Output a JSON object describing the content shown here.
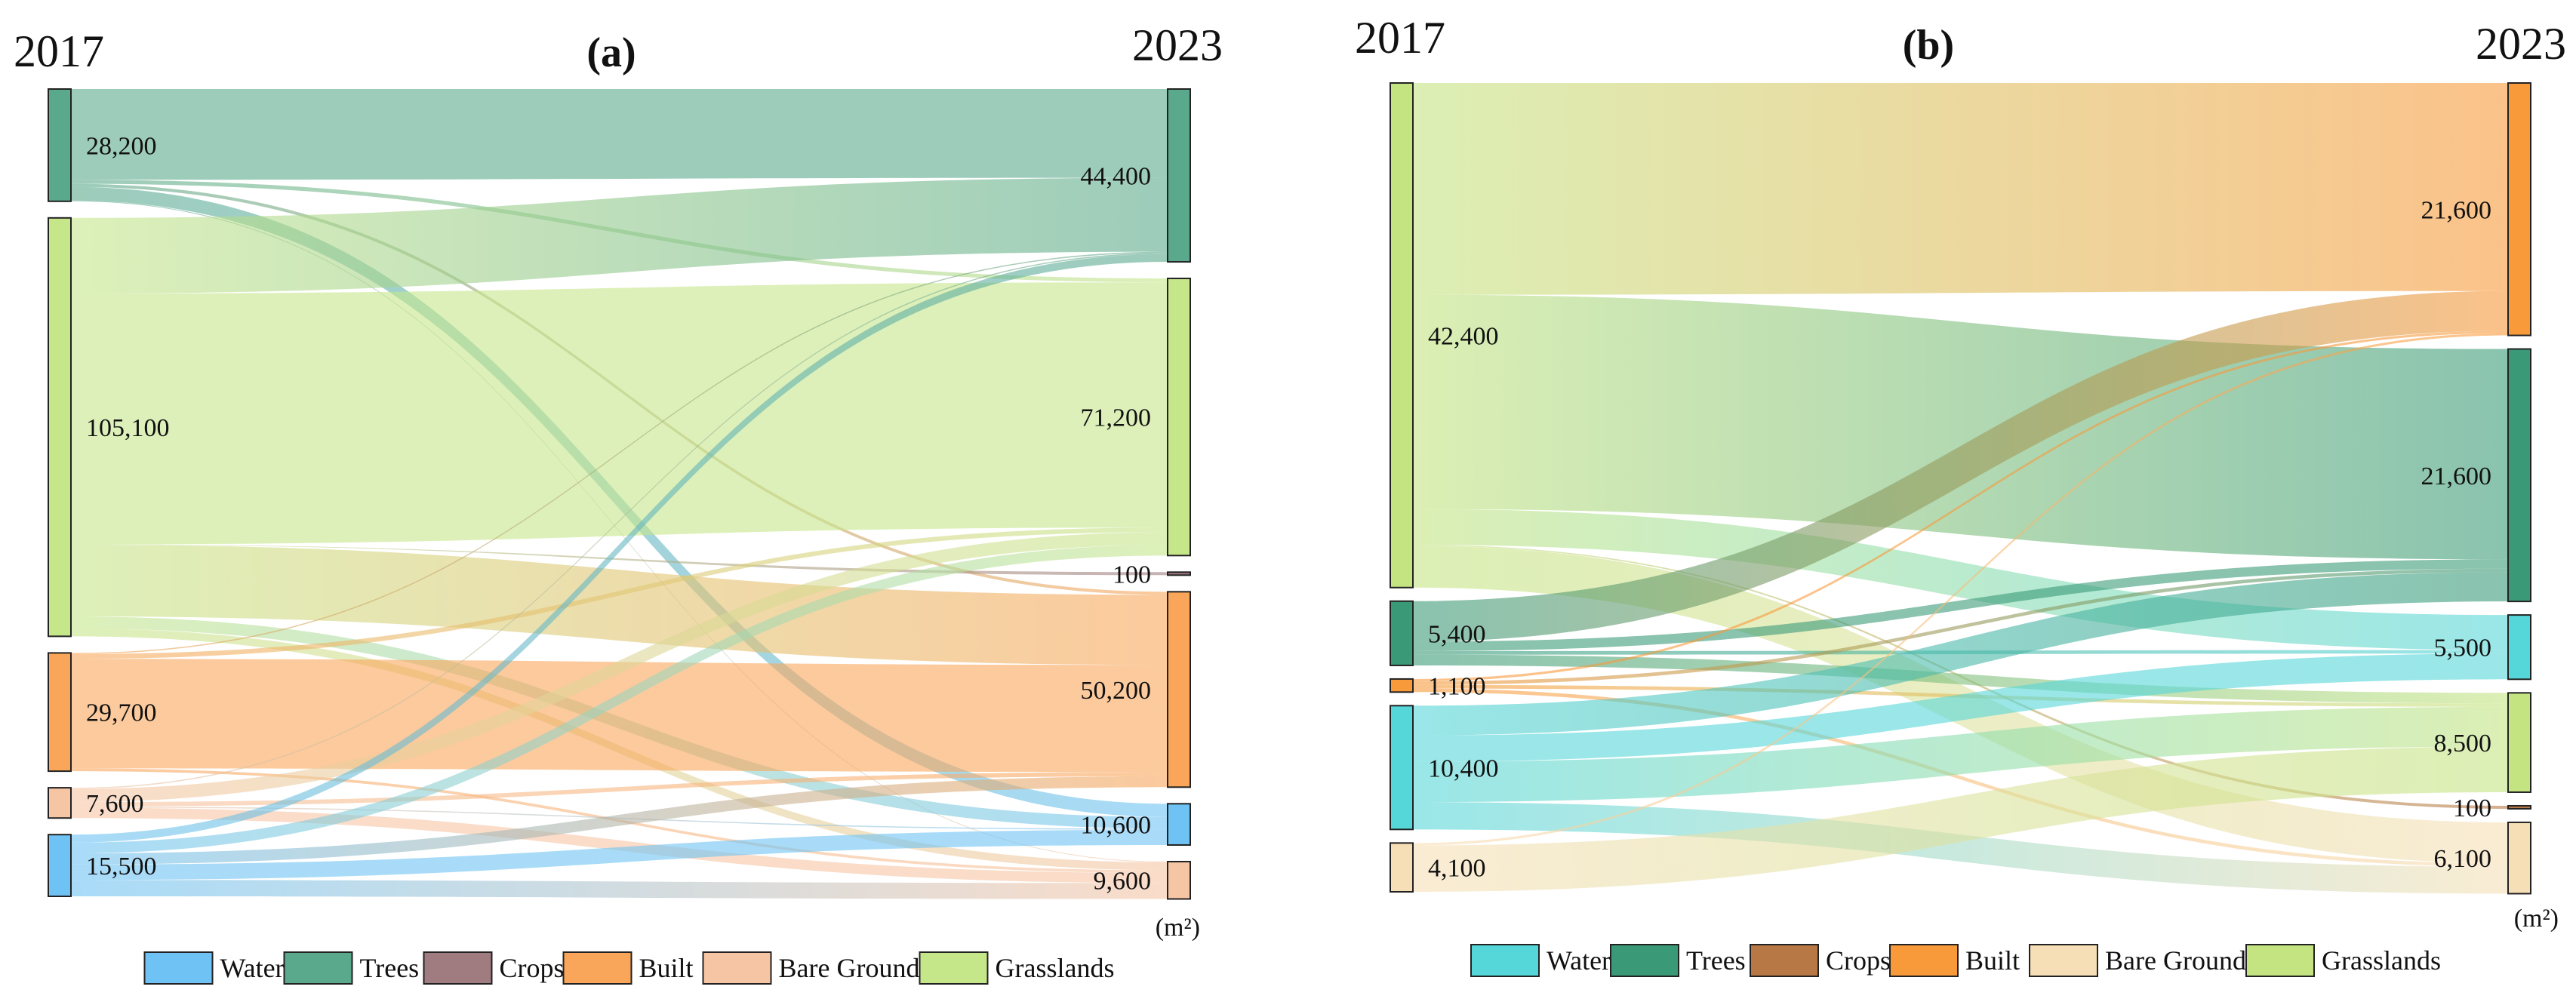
{
  "colors": {
    "a": {
      "Water": "#6ec3f4",
      "Trees": "#5aa98c",
      "Crops": "#a07c80",
      "Built": "#f9a65a",
      "Bare Ground": "#f6c5a4",
      "Grasslands": "#c6e68a"
    },
    "b": {
      "Water": "#55d6d9",
      "Trees": "#3a9a78",
      "Crops": "#b87845",
      "Built": "#f8993a",
      "Bare Ground": "#f6dfb6",
      "Grasslands": "#c4e482"
    }
  },
  "chart_data": [
    {
      "type": "sankey",
      "panel": "(a)",
      "title": "(a)",
      "left_year": "2017",
      "right_year": "2023",
      "unit": "(m²)",
      "left_nodes": [
        {
          "name": "Trees",
          "value": 28200,
          "label": "28,200"
        },
        {
          "name": "Grasslands",
          "value": 105100,
          "label": "105,100"
        },
        {
          "name": "Built",
          "value": 29700,
          "label": "29,700"
        },
        {
          "name": "Bare Ground",
          "value": 7600,
          "label": "7,600"
        },
        {
          "name": "Water",
          "value": 15500,
          "label": "15,500"
        }
      ],
      "right_nodes": [
        {
          "name": "Trees",
          "value": 44400,
          "label": "44,400"
        },
        {
          "name": "Grasslands",
          "value": 71200,
          "label": "71,200"
        },
        {
          "name": "Crops",
          "value": 100,
          "label": "100"
        },
        {
          "name": "Built",
          "value": 50200,
          "label": "50,200"
        },
        {
          "name": "Water",
          "value": 10600,
          "label": "10,600"
        },
        {
          "name": "Bare Ground",
          "value": 9600,
          "label": "9,600"
        }
      ],
      "flows": [
        {
          "from": "Trees",
          "to": "Trees",
          "value": 22800
        },
        {
          "from": "Trees",
          "to": "Grasslands",
          "value": 1000
        },
        {
          "from": "Trees",
          "to": "Built",
          "value": 800
        },
        {
          "from": "Trees",
          "to": "Water",
          "value": 3400
        },
        {
          "from": "Trees",
          "to": "Bare Ground",
          "value": 200
        },
        {
          "from": "Grasslands",
          "to": "Trees",
          "value": 19000
        },
        {
          "from": "Grasslands",
          "to": "Grasslands",
          "value": 63000
        },
        {
          "from": "Grasslands",
          "to": "Crops",
          "value": 100
        },
        {
          "from": "Grasslands",
          "to": "Built",
          "value": 18000
        },
        {
          "from": "Grasslands",
          "to": "Water",
          "value": 3000
        },
        {
          "from": "Grasslands",
          "to": "Bare Ground",
          "value": 2000
        },
        {
          "from": "Built",
          "to": "Trees",
          "value": 300
        },
        {
          "from": "Built",
          "to": "Grasslands",
          "value": 1200
        },
        {
          "from": "Built",
          "to": "Built",
          "value": 27500
        },
        {
          "from": "Built",
          "to": "Bare Ground",
          "value": 700
        },
        {
          "from": "Bare Ground",
          "to": "Trees",
          "value": 300
        },
        {
          "from": "Bare Ground",
          "to": "Grasslands",
          "value": 3300
        },
        {
          "from": "Bare Ground",
          "to": "Built",
          "value": 1100
        },
        {
          "from": "Bare Ground",
          "to": "Water",
          "value": 300
        },
        {
          "from": "Bare Ground",
          "to": "Bare Ground",
          "value": 2600
        },
        {
          "from": "Water",
          "to": "Trees",
          "value": 2000
        },
        {
          "from": "Water",
          "to": "Grasslands",
          "value": 2700
        },
        {
          "from": "Water",
          "to": "Built",
          "value": 2800
        },
        {
          "from": "Water",
          "to": "Water",
          "value": 3900
        },
        {
          "from": "Water",
          "to": "Bare Ground",
          "value": 4100
        }
      ],
      "legend": [
        "Water",
        "Trees",
        "Crops",
        "Built",
        "Bare Ground",
        "Grasslands"
      ]
    },
    {
      "type": "sankey",
      "panel": "(b)",
      "title": "(b)",
      "left_year": "2017",
      "right_year": "2023",
      "unit": "(m²)",
      "left_nodes": [
        {
          "name": "Grasslands",
          "value": 42400,
          "label": "42,400"
        },
        {
          "name": "Trees",
          "value": 5400,
          "label": "5,400"
        },
        {
          "name": "Built",
          "value": 1100,
          "label": "1,100"
        },
        {
          "name": "Water",
          "value": 10400,
          "label": "10,400"
        },
        {
          "name": "Bare Ground",
          "value": 4100,
          "label": "4,100"
        }
      ],
      "right_nodes": [
        {
          "name": "Built",
          "value": 21600,
          "label": "21,600"
        },
        {
          "name": "Trees",
          "value": 21600,
          "label": "21,600"
        },
        {
          "name": "Water",
          "value": 5500,
          "label": "5,500"
        },
        {
          "name": "Grasslands",
          "value": 8500,
          "label": "8,500"
        },
        {
          "name": "Crops",
          "value": 100,
          "label": "100"
        },
        {
          "name": "Bare Ground",
          "value": 6100,
          "label": "6,100"
        }
      ],
      "flows": [
        {
          "from": "Grasslands",
          "to": "Built",
          "value": 17800
        },
        {
          "from": "Grasslands",
          "to": "Trees",
          "value": 18000
        },
        {
          "from": "Grasslands",
          "to": "Water",
          "value": 3000
        },
        {
          "from": "Grasslands",
          "to": "Crops",
          "value": 100
        },
        {
          "from": "Grasslands",
          "to": "Bare Ground",
          "value": 3500
        },
        {
          "from": "Trees",
          "to": "Built",
          "value": 3400
        },
        {
          "from": "Trees",
          "to": "Trees",
          "value": 800
        },
        {
          "from": "Trees",
          "to": "Water",
          "value": 300
        },
        {
          "from": "Trees",
          "to": "Grasslands",
          "value": 900
        },
        {
          "from": "Built",
          "to": "Built",
          "value": 200
        },
        {
          "from": "Built",
          "to": "Trees",
          "value": 300
        },
        {
          "from": "Built",
          "to": "Grasslands",
          "value": 300
        },
        {
          "from": "Built",
          "to": "Bare Ground",
          "value": 300
        },
        {
          "from": "Water",
          "to": "Trees",
          "value": 2500
        },
        {
          "from": "Water",
          "to": "Water",
          "value": 2200
        },
        {
          "from": "Water",
          "to": "Grasslands",
          "value": 3400
        },
        {
          "from": "Water",
          "to": "Bare Ground",
          "value": 2300
        },
        {
          "from": "Bare Ground",
          "to": "Built",
          "value": 200
        },
        {
          "from": "Bare Ground",
          "to": "Grasslands",
          "value": 3900
        }
      ],
      "legend": [
        "Water",
        "Trees",
        "Crops",
        "Built",
        "Bare Ground",
        "Grasslands"
      ]
    }
  ]
}
